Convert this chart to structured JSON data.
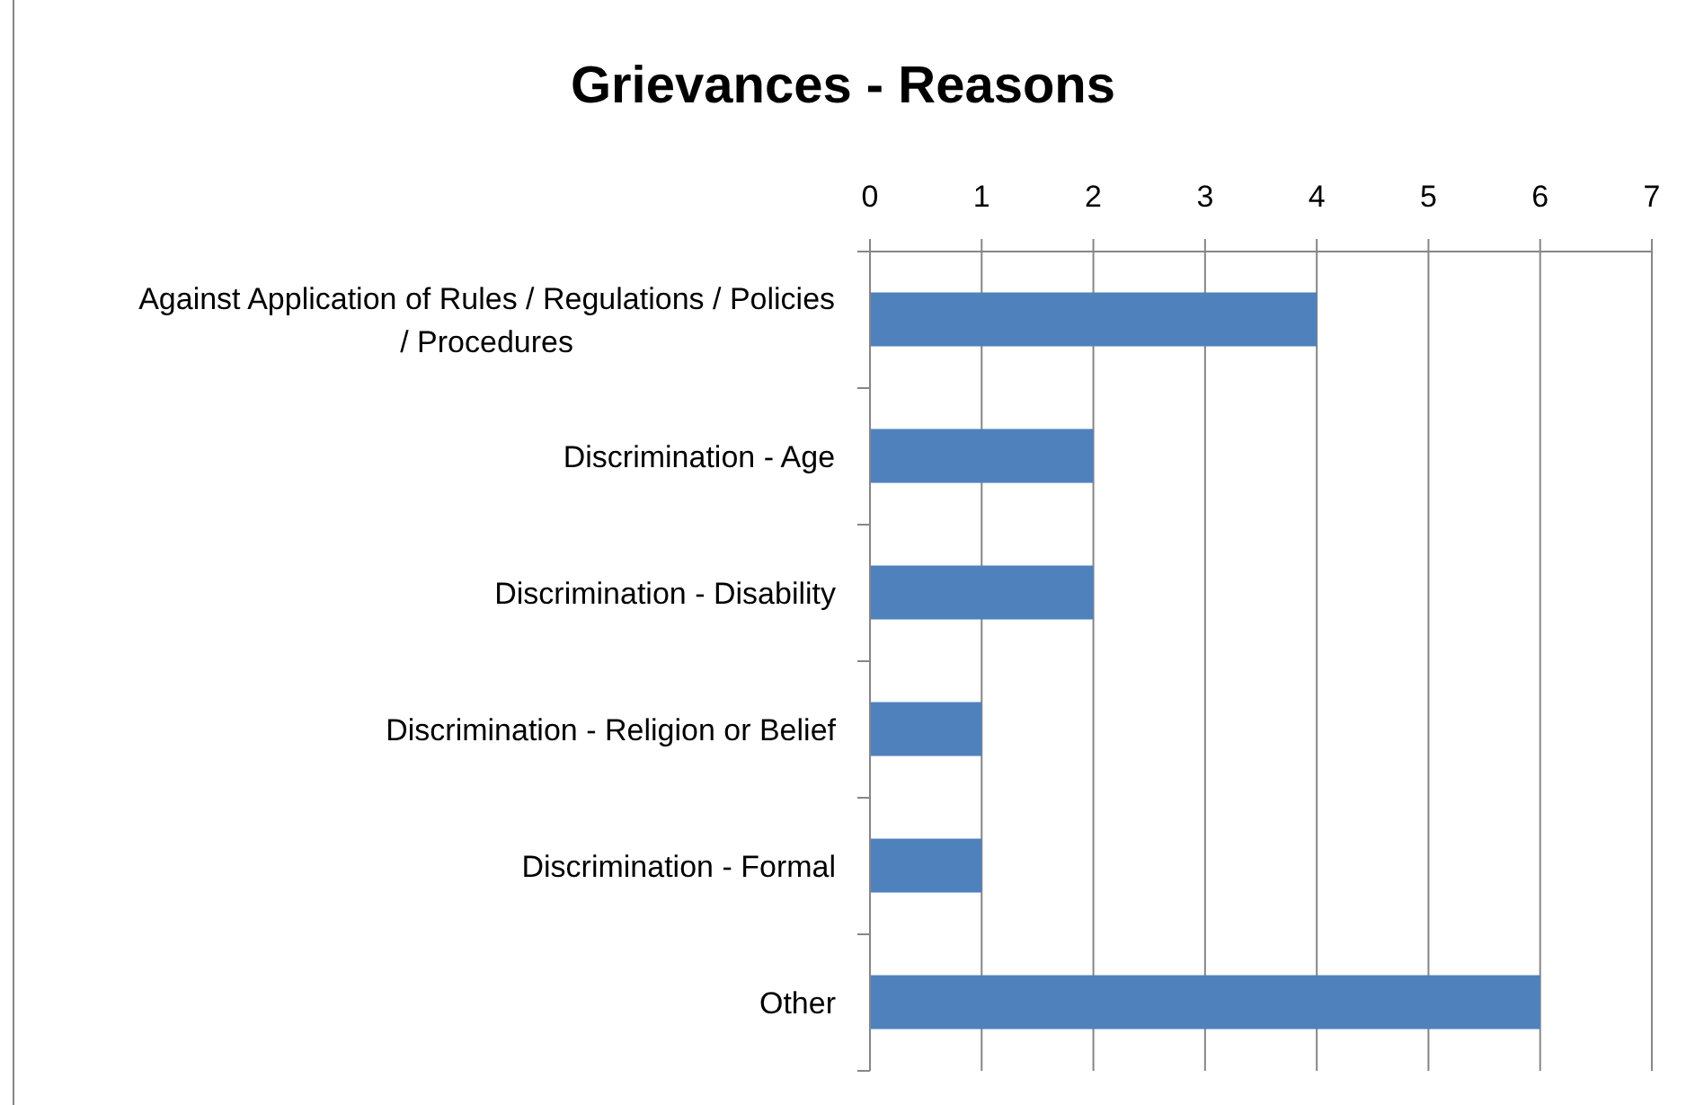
{
  "chart_data": {
    "type": "bar",
    "orientation": "horizontal",
    "title": "Grievances - Reasons",
    "categories": [
      "Against Application of Rules / Regulations / Policies / Procedures",
      "Discrimination - Age",
      "Discrimination - Disability",
      "Discrimination - Religion or Belief",
      "Discrimination - Formal",
      "Other"
    ],
    "values": [
      4,
      2,
      2,
      1,
      1,
      6
    ],
    "color": "#4f81bd",
    "xlim": [
      0,
      7
    ],
    "xticks": [
      0,
      1,
      2,
      3,
      4,
      5,
      6,
      7
    ],
    "grid": "x"
  }
}
